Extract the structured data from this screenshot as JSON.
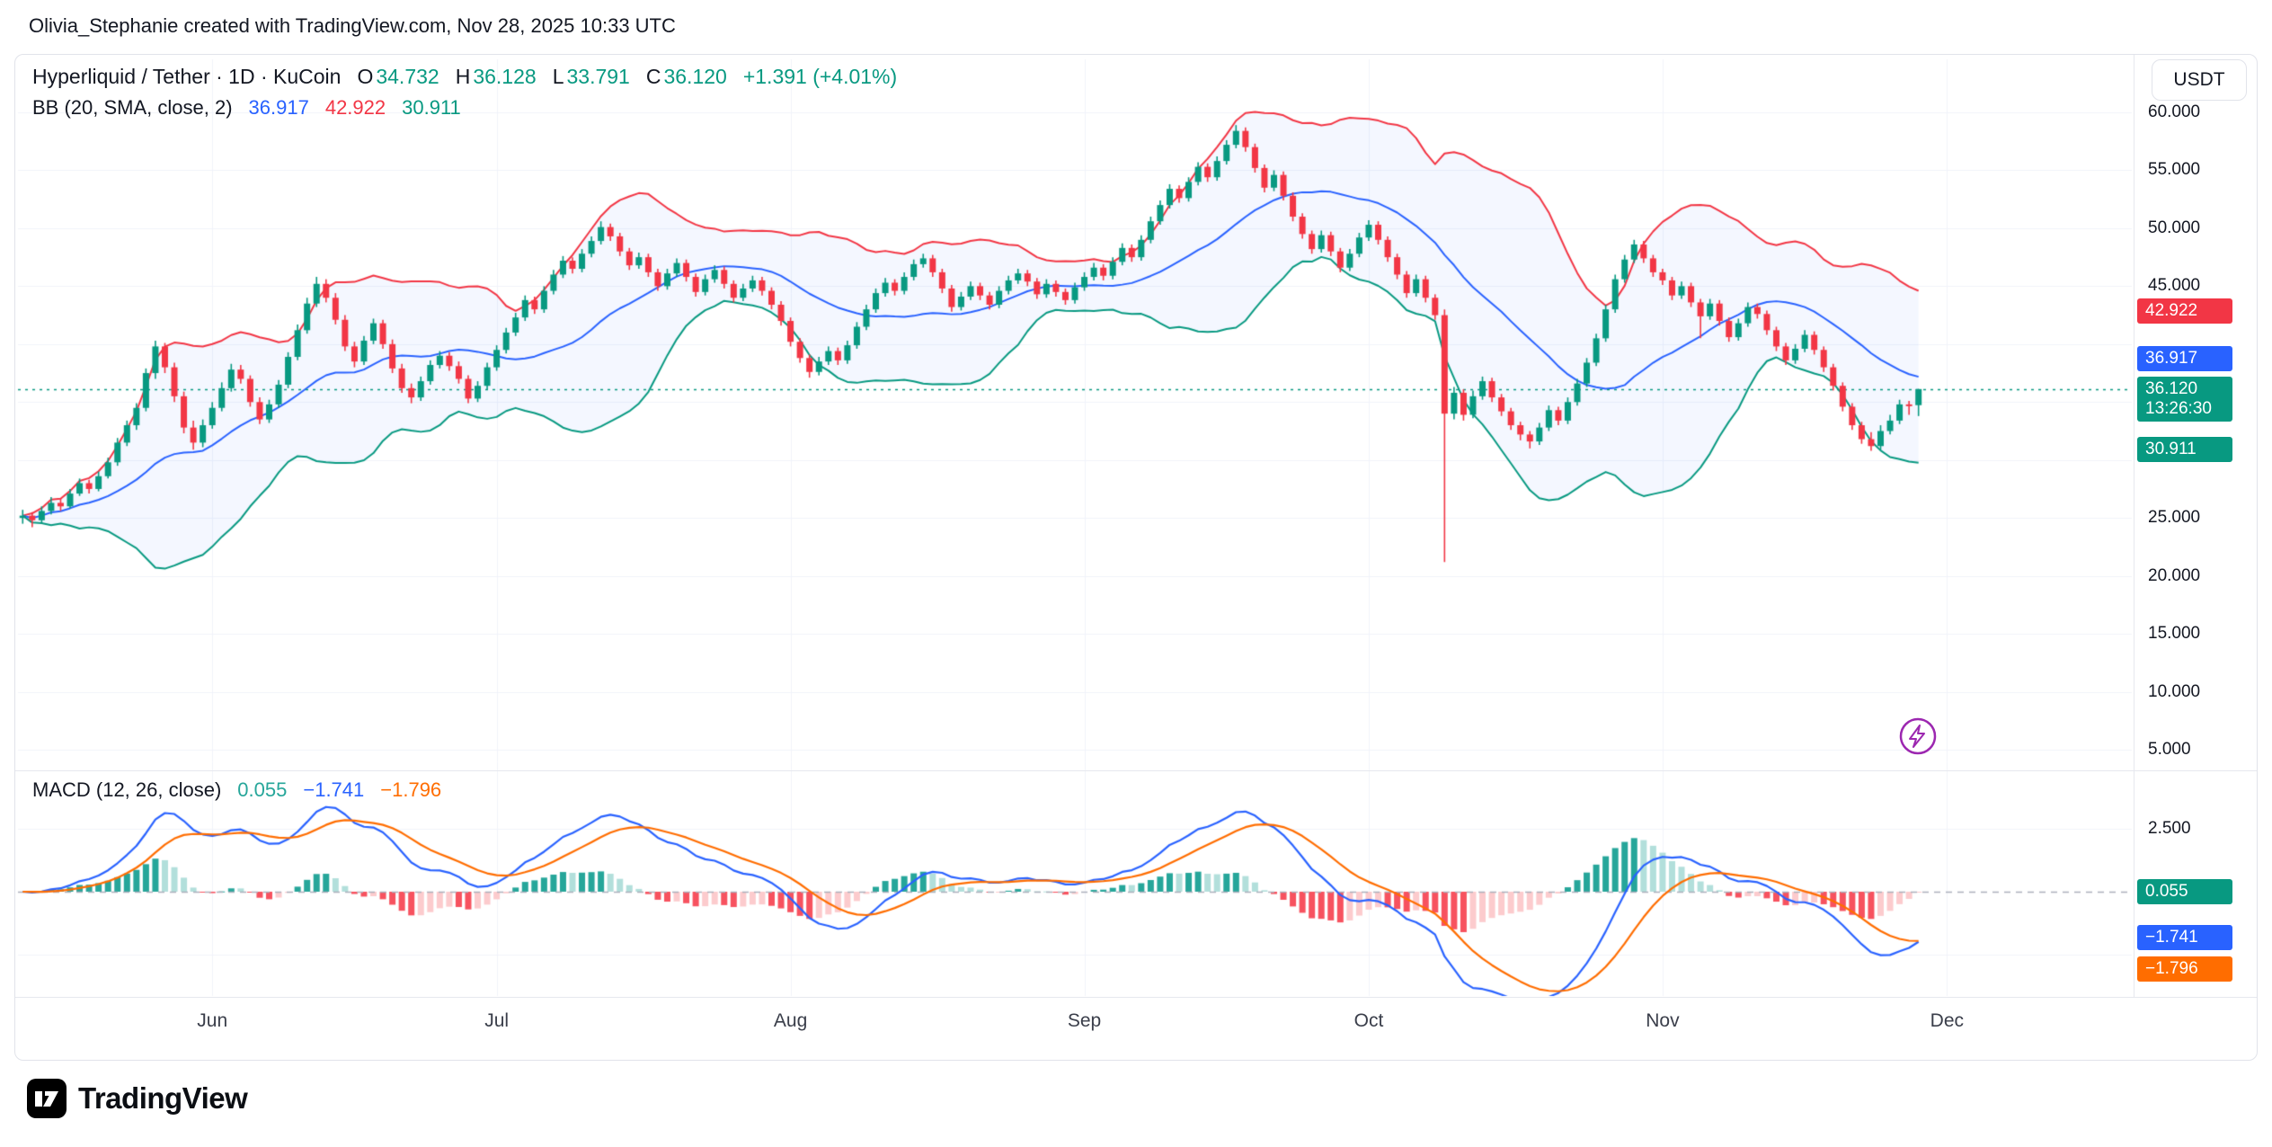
{
  "header": {
    "attribution": "Olivia_Stephanie created with TradingView.com, Nov 28, 2025 10:33 UTC"
  },
  "toolbar": {
    "currency": "USDT"
  },
  "legend": {
    "symbol": "Hyperliquid / Tether · 1D · KuCoin",
    "open_label": "O",
    "open": "34.732",
    "high_label": "H",
    "high": "36.128",
    "low_label": "L",
    "low": "33.791",
    "close_label": "C",
    "close": "36.120",
    "change": "+1.391 (+4.01%)",
    "bb": {
      "title": "BB (20, SMA, close, 2)",
      "basis": "36.917",
      "upper": "42.922",
      "lower": "30.911"
    }
  },
  "macd_legend": {
    "title": "MACD (12, 26, close)",
    "histogram": "0.055",
    "macd": "−1.741",
    "signal": "−1.796"
  },
  "price_axis": {
    "ticks": [
      {
        "label": "60.000",
        "value": 60
      },
      {
        "label": "55.000",
        "value": 55
      },
      {
        "label": "50.000",
        "value": 50
      },
      {
        "label": "45.000",
        "value": 45
      },
      {
        "label": "25.000",
        "value": 25
      },
      {
        "label": "20.000",
        "value": 20
      },
      {
        "label": "15.000",
        "value": 15
      },
      {
        "label": "10.000",
        "value": 10
      },
      {
        "label": "5.000",
        "value": 5
      }
    ],
    "upper_band_label": "42.922",
    "basis_label": "36.917",
    "last_price_label": "36.120",
    "countdown": "13:26:30",
    "lower_band_label": "30.911"
  },
  "macd_axis": {
    "tick": "2.500",
    "histogram_label": "0.055",
    "macd_label": "−1.741",
    "signal_label": "−1.796"
  },
  "time_axis": {
    "months": [
      "Jun",
      "Jul",
      "Aug",
      "Sep",
      "Oct",
      "Nov",
      "Dec"
    ],
    "month_indices": [
      20,
      50,
      81,
      112,
      142,
      173,
      203
    ]
  },
  "footer": {
    "brand": "TradingView"
  },
  "colors": {
    "up": "#089981",
    "down": "#F23645",
    "basis": "#2962FF",
    "upper_band": "#F23645",
    "lower_band": "#089981",
    "band_fill": "rgba(41,98,255,0.05)",
    "macd_line": "#2962FF",
    "signal_line": "#FF6D00",
    "hist_up_strong": "#26A69A",
    "hist_up_weak": "#B2DFDB",
    "hist_down_strong": "#F7525F",
    "hist_down_weak": "#FCCBCD",
    "grid": "#F0F3FA",
    "zero_line": "#ABAFBB",
    "axis_text": "#131722",
    "bolt_purple": "#9C27B0"
  },
  "chart_data": {
    "type": "candlestick",
    "symbol": "Hyperliquid / Tether",
    "exchange": "KuCoin",
    "interval": "1D",
    "ylim": [
      3.5,
      63
    ],
    "visible_price_ticks": [
      60,
      55,
      50,
      45,
      25,
      20,
      15,
      10,
      5
    ],
    "last_candle": {
      "open": 34.732,
      "high": 36.128,
      "low": 33.791,
      "close": 36.12,
      "change": 1.391,
      "change_pct": 4.01
    },
    "bollinger": {
      "length": 20,
      "stddev": 2,
      "basis": 36.917,
      "upper": 42.922,
      "lower": 30.911
    },
    "macd": {
      "fast": 12,
      "slow": 26,
      "signal_length": 9,
      "histogram": 0.055,
      "macd": -1.741,
      "signal": -1.796,
      "pane_tick": 2.5
    },
    "candles_format": [
      "open",
      "high",
      "low",
      "close"
    ],
    "candles": [
      [
        25.0,
        25.7,
        24.5,
        25.2
      ],
      [
        25.2,
        25.5,
        24.2,
        24.8
      ],
      [
        24.8,
        26.0,
        24.5,
        25.6
      ],
      [
        25.6,
        26.8,
        25.3,
        26.3
      ],
      [
        26.3,
        26.7,
        25.6,
        26.0
      ],
      [
        26.0,
        27.5,
        25.8,
        27.1
      ],
      [
        27.1,
        28.4,
        26.9,
        28.0
      ],
      [
        28.0,
        28.3,
        27.1,
        27.5
      ],
      [
        27.5,
        29.0,
        27.3,
        28.6
      ],
      [
        28.6,
        30.2,
        28.4,
        29.8
      ],
      [
        29.8,
        31.9,
        29.5,
        31.5
      ],
      [
        31.5,
        33.4,
        31.2,
        33.0
      ],
      [
        33.0,
        34.9,
        32.6,
        34.5
      ],
      [
        34.5,
        37.9,
        34.2,
        37.5
      ],
      [
        37.5,
        40.3,
        37.0,
        39.8
      ],
      [
        39.8,
        40.1,
        37.5,
        38.0
      ],
      [
        38.0,
        38.4,
        35.0,
        35.5
      ],
      [
        35.5,
        35.9,
        32.3,
        32.8
      ],
      [
        32.8,
        33.4,
        30.9,
        31.5
      ],
      [
        31.5,
        33.5,
        31.1,
        33.0
      ],
      [
        33.0,
        35.0,
        32.7,
        34.5
      ],
      [
        34.5,
        36.7,
        34.2,
        36.2
      ],
      [
        36.2,
        38.3,
        35.9,
        37.8
      ],
      [
        37.8,
        38.2,
        36.6,
        37.0
      ],
      [
        37.0,
        37.3,
        34.6,
        35.0
      ],
      [
        35.0,
        35.4,
        33.1,
        33.5
      ],
      [
        33.5,
        35.2,
        33.2,
        34.8
      ],
      [
        34.8,
        36.9,
        34.5,
        36.5
      ],
      [
        36.5,
        39.3,
        36.2,
        38.9
      ],
      [
        38.9,
        41.7,
        38.6,
        41.2
      ],
      [
        41.2,
        44.0,
        40.9,
        43.5
      ],
      [
        43.5,
        45.8,
        43.2,
        45.2
      ],
      [
        45.2,
        45.6,
        43.6,
        44.0
      ],
      [
        44.0,
        44.4,
        41.7,
        42.1
      ],
      [
        42.1,
        42.5,
        39.4,
        39.8
      ],
      [
        39.8,
        40.2,
        38.0,
        38.5
      ],
      [
        38.5,
        40.7,
        38.2,
        40.3
      ],
      [
        40.3,
        42.2,
        40.0,
        41.8
      ],
      [
        41.8,
        42.1,
        39.6,
        40.0
      ],
      [
        40.0,
        40.4,
        37.5,
        37.9
      ],
      [
        37.9,
        38.3,
        35.8,
        36.2
      ],
      [
        36.2,
        36.6,
        34.9,
        35.4
      ],
      [
        35.4,
        37.2,
        35.1,
        36.8
      ],
      [
        36.8,
        38.6,
        36.5,
        38.2
      ],
      [
        38.2,
        39.4,
        37.9,
        39.0
      ],
      [
        39.0,
        39.3,
        37.7,
        38.1
      ],
      [
        38.1,
        38.5,
        36.6,
        37.0
      ],
      [
        37.0,
        37.3,
        34.9,
        35.3
      ],
      [
        35.3,
        36.8,
        35.0,
        36.4
      ],
      [
        36.4,
        38.4,
        36.1,
        38.0
      ],
      [
        38.0,
        39.9,
        37.7,
        39.5
      ],
      [
        39.5,
        41.4,
        39.2,
        41.0
      ],
      [
        41.0,
        42.7,
        40.7,
        42.3
      ],
      [
        42.3,
        44.2,
        42.0,
        43.8
      ],
      [
        43.8,
        44.1,
        42.6,
        43.0
      ],
      [
        43.0,
        45.0,
        42.7,
        44.6
      ],
      [
        44.6,
        46.4,
        44.3,
        46.0
      ],
      [
        46.0,
        47.6,
        45.7,
        47.2
      ],
      [
        47.2,
        47.5,
        46.1,
        46.5
      ],
      [
        46.5,
        48.2,
        46.2,
        47.8
      ],
      [
        47.8,
        49.3,
        47.5,
        48.9
      ],
      [
        48.9,
        50.6,
        48.6,
        50.1
      ],
      [
        50.1,
        50.4,
        48.9,
        49.3
      ],
      [
        49.3,
        49.6,
        47.6,
        48.0
      ],
      [
        48.0,
        48.3,
        46.4,
        46.8
      ],
      [
        46.8,
        47.9,
        46.5,
        47.5
      ],
      [
        47.5,
        47.8,
        45.8,
        46.2
      ],
      [
        46.2,
        46.5,
        44.6,
        45.0
      ],
      [
        45.0,
        46.5,
        44.7,
        46.1
      ],
      [
        46.1,
        47.4,
        45.8,
        47.0
      ],
      [
        47.0,
        47.3,
        45.4,
        45.8
      ],
      [
        45.8,
        46.1,
        44.1,
        44.5
      ],
      [
        44.5,
        46.0,
        44.2,
        45.6
      ],
      [
        45.6,
        46.8,
        45.3,
        46.4
      ],
      [
        46.4,
        46.7,
        44.8,
        45.2
      ],
      [
        45.2,
        45.5,
        43.6,
        44.0
      ],
      [
        44.0,
        45.2,
        43.7,
        44.8
      ],
      [
        44.8,
        45.9,
        44.5,
        45.5
      ],
      [
        45.5,
        45.8,
        44.2,
        44.6
      ],
      [
        44.6,
        44.9,
        43.0,
        43.4
      ],
      [
        43.4,
        43.7,
        41.6,
        42.0
      ],
      [
        42.0,
        42.3,
        39.8,
        40.2
      ],
      [
        40.2,
        40.5,
        38.4,
        38.8
      ],
      [
        38.8,
        39.1,
        37.1,
        37.6
      ],
      [
        37.6,
        38.9,
        37.3,
        38.5
      ],
      [
        38.5,
        39.8,
        38.2,
        39.4
      ],
      [
        39.4,
        39.7,
        38.2,
        38.6
      ],
      [
        38.6,
        40.3,
        38.3,
        39.9
      ],
      [
        39.9,
        41.9,
        39.6,
        41.5
      ],
      [
        41.5,
        43.4,
        41.2,
        43.0
      ],
      [
        43.0,
        44.8,
        42.7,
        44.4
      ],
      [
        44.4,
        45.7,
        44.1,
        45.3
      ],
      [
        45.3,
        45.6,
        44.2,
        44.6
      ],
      [
        44.6,
        46.2,
        44.3,
        45.8
      ],
      [
        45.8,
        47.3,
        45.5,
        46.9
      ],
      [
        46.9,
        47.8,
        46.6,
        47.4
      ],
      [
        47.4,
        47.7,
        45.8,
        46.2
      ],
      [
        46.2,
        46.5,
        44.4,
        44.8
      ],
      [
        44.8,
        45.1,
        42.8,
        43.2
      ],
      [
        43.2,
        44.5,
        42.9,
        44.1
      ],
      [
        44.1,
        45.4,
        43.8,
        45.0
      ],
      [
        45.0,
        45.3,
        43.8,
        44.2
      ],
      [
        44.2,
        44.5,
        43.0,
        43.4
      ],
      [
        43.4,
        45.0,
        43.1,
        44.6
      ],
      [
        44.6,
        45.9,
        44.3,
        45.5
      ],
      [
        45.5,
        46.5,
        45.2,
        46.1
      ],
      [
        46.1,
        46.4,
        45.0,
        45.4
      ],
      [
        45.4,
        45.7,
        43.9,
        44.3
      ],
      [
        44.3,
        45.6,
        44.0,
        45.2
      ],
      [
        45.2,
        45.5,
        44.1,
        44.5
      ],
      [
        44.5,
        44.8,
        43.4,
        43.8
      ],
      [
        43.8,
        45.3,
        43.5,
        44.9
      ],
      [
        44.9,
        46.2,
        44.6,
        45.8
      ],
      [
        45.8,
        47.0,
        45.5,
        46.6
      ],
      [
        46.6,
        46.9,
        45.5,
        45.9
      ],
      [
        45.9,
        47.5,
        45.6,
        47.1
      ],
      [
        47.1,
        48.7,
        46.8,
        48.3
      ],
      [
        48.3,
        48.6,
        47.1,
        47.5
      ],
      [
        47.5,
        49.4,
        47.2,
        49.0
      ],
      [
        49.0,
        51.0,
        48.7,
        50.6
      ],
      [
        50.6,
        52.4,
        50.3,
        52.0
      ],
      [
        52.0,
        53.8,
        51.7,
        53.4
      ],
      [
        53.4,
        53.7,
        52.2,
        52.6
      ],
      [
        52.6,
        54.4,
        52.3,
        54.0
      ],
      [
        54.0,
        55.7,
        53.7,
        55.3
      ],
      [
        55.3,
        55.6,
        54.0,
        54.4
      ],
      [
        54.4,
        56.2,
        54.1,
        55.8
      ],
      [
        55.8,
        57.6,
        55.5,
        57.2
      ],
      [
        57.2,
        58.9,
        56.9,
        58.4
      ],
      [
        58.4,
        58.7,
        56.6,
        57.0
      ],
      [
        57.0,
        57.3,
        54.8,
        55.2
      ],
      [
        55.2,
        55.5,
        53.1,
        53.5
      ],
      [
        53.5,
        55.0,
        53.2,
        54.6
      ],
      [
        54.6,
        54.9,
        52.4,
        52.8
      ],
      [
        52.8,
        53.1,
        50.6,
        51.0
      ],
      [
        51.0,
        51.3,
        49.1,
        49.5
      ],
      [
        49.5,
        49.8,
        47.8,
        48.2
      ],
      [
        48.2,
        49.8,
        47.9,
        49.4
      ],
      [
        49.4,
        49.7,
        47.6,
        48.0
      ],
      [
        48.0,
        48.3,
        46.2,
        46.6
      ],
      [
        46.6,
        48.2,
        46.3,
        47.8
      ],
      [
        47.8,
        49.6,
        47.5,
        49.2
      ],
      [
        49.2,
        50.7,
        48.9,
        50.3
      ],
      [
        50.3,
        50.6,
        48.6,
        49.0
      ],
      [
        49.0,
        49.3,
        47.1,
        47.5
      ],
      [
        47.5,
        47.8,
        45.6,
        46.0
      ],
      [
        46.0,
        46.3,
        44.0,
        44.4
      ],
      [
        44.4,
        46.0,
        44.1,
        45.6
      ],
      [
        45.6,
        45.9,
        43.6,
        44.0
      ],
      [
        44.0,
        44.3,
        42.1,
        42.5
      ],
      [
        42.5,
        43.0,
        21.2,
        34.0
      ],
      [
        34.0,
        36.3,
        33.5,
        35.8
      ],
      [
        35.8,
        36.1,
        33.4,
        33.9
      ],
      [
        33.9,
        36.0,
        33.6,
        35.5
      ],
      [
        35.5,
        37.2,
        35.2,
        36.8
      ],
      [
        36.8,
        37.1,
        35.0,
        35.4
      ],
      [
        35.4,
        35.7,
        33.8,
        34.2
      ],
      [
        34.2,
        34.5,
        32.6,
        33.0
      ],
      [
        33.0,
        33.3,
        31.7,
        32.2
      ],
      [
        32.2,
        32.5,
        31.0,
        31.6
      ],
      [
        31.6,
        33.2,
        31.3,
        32.8
      ],
      [
        32.8,
        34.7,
        32.5,
        34.3
      ],
      [
        34.3,
        34.6,
        33.0,
        33.4
      ],
      [
        33.4,
        35.4,
        33.1,
        35.0
      ],
      [
        35.0,
        37.0,
        34.7,
        36.6
      ],
      [
        36.6,
        38.8,
        36.3,
        38.4
      ],
      [
        38.4,
        40.9,
        38.1,
        40.5
      ],
      [
        40.5,
        43.4,
        40.2,
        43.0
      ],
      [
        43.0,
        46.0,
        42.7,
        45.6
      ],
      [
        45.6,
        47.7,
        45.3,
        47.3
      ],
      [
        47.3,
        49.0,
        47.0,
        48.6
      ],
      [
        48.6,
        48.9,
        47.0,
        47.4
      ],
      [
        47.4,
        47.7,
        45.8,
        46.2
      ],
      [
        46.2,
        46.5,
        45.1,
        45.5
      ],
      [
        45.5,
        45.8,
        43.8,
        44.2
      ],
      [
        44.2,
        45.4,
        43.9,
        45.0
      ],
      [
        45.0,
        45.3,
        43.2,
        43.6
      ],
      [
        43.6,
        43.9,
        40.5,
        42.4
      ],
      [
        42.4,
        43.9,
        42.1,
        43.5
      ],
      [
        43.5,
        43.8,
        41.6,
        42.0
      ],
      [
        42.0,
        42.3,
        40.2,
        40.6
      ],
      [
        40.6,
        42.2,
        40.3,
        41.8
      ],
      [
        41.8,
        43.6,
        41.5,
        43.2
      ],
      [
        43.2,
        43.5,
        42.2,
        42.6
      ],
      [
        42.6,
        42.9,
        40.8,
        41.2
      ],
      [
        41.2,
        41.5,
        39.4,
        39.8
      ],
      [
        39.8,
        40.1,
        38.2,
        38.6
      ],
      [
        38.6,
        40.0,
        38.3,
        39.6
      ],
      [
        39.6,
        41.2,
        39.3,
        40.8
      ],
      [
        40.8,
        41.1,
        39.1,
        39.5
      ],
      [
        39.5,
        39.8,
        37.6,
        38.0
      ],
      [
        38.0,
        38.3,
        36.0,
        36.4
      ],
      [
        36.4,
        36.7,
        34.2,
        34.6
      ],
      [
        34.6,
        34.9,
        32.6,
        33.0
      ],
      [
        33.0,
        33.3,
        31.4,
        31.8
      ],
      [
        31.8,
        32.4,
        30.8,
        31.2
      ],
      [
        31.2,
        33.0,
        30.9,
        32.5
      ],
      [
        32.5,
        33.9,
        32.2,
        33.4
      ],
      [
        33.4,
        35.2,
        33.1,
        34.8
      ],
      [
        34.8,
        35.1,
        33.9,
        34.73
      ],
      [
        34.732,
        36.128,
        33.791,
        36.12
      ]
    ]
  }
}
